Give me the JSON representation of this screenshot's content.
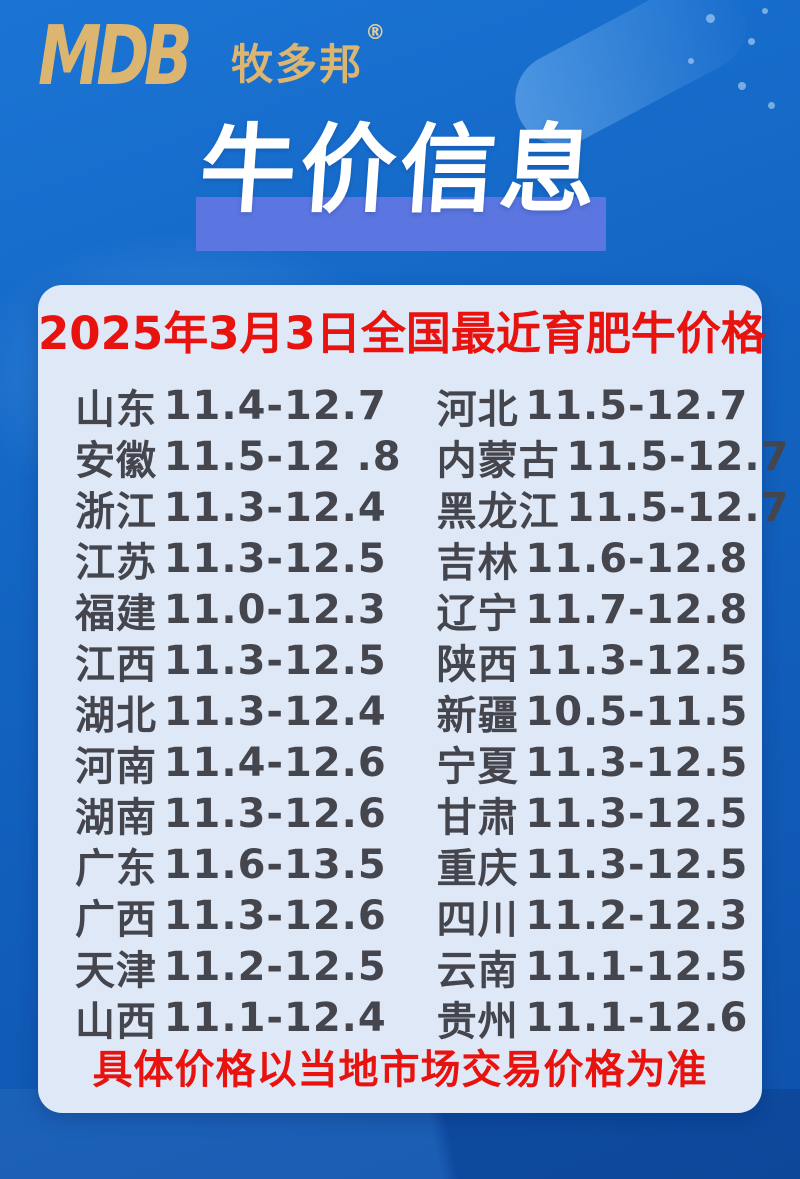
{
  "brand": {
    "logo": "MDB",
    "name": "牧多邦",
    "registered": "®"
  },
  "title": "牛价信息",
  "header": "2025年3月3日全国最近育肥牛价格",
  "footer": "具体价格以当地市场交易价格为准",
  "colors": {
    "accent_red": "#e8120e",
    "brand_gold": "#dcb671",
    "banner_blue": "#5b76e0",
    "card_bg": "#dee8f6",
    "bg_top": "#1b74d4",
    "bg_bottom": "#0e51ab",
    "row_text": "#45454d"
  },
  "table": {
    "left": [
      {
        "region": "山东",
        "price": "11.4-12.7"
      },
      {
        "region": "安徽",
        "price": "11.5-12 .8"
      },
      {
        "region": "浙江",
        "price": "11.3-12.4"
      },
      {
        "region": "江苏",
        "price": "11.3-12.5"
      },
      {
        "region": "福建",
        "price": "11.0-12.3"
      },
      {
        "region": "江西",
        "price": "11.3-12.5"
      },
      {
        "region": "湖北",
        "price": "11.3-12.4"
      },
      {
        "region": "河南",
        "price": "11.4-12.6"
      },
      {
        "region": "湖南",
        "price": "11.3-12.6"
      },
      {
        "region": "广东",
        "price": "11.6-13.5"
      },
      {
        "region": "广西",
        "price": "11.3-12.6"
      },
      {
        "region": "天津",
        "price": "11.2-12.5"
      },
      {
        "region": "山西",
        "price": "11.1-12.4"
      }
    ],
    "right": [
      {
        "region": "河北",
        "price": "11.5-12.7"
      },
      {
        "region": "内蒙古",
        "price": "11.5-12.7"
      },
      {
        "region": "黑龙江",
        "price": "11.5-12.7"
      },
      {
        "region": "吉林",
        "price": "11.6-12.8"
      },
      {
        "region": "辽宁",
        "price": "11.7-12.8"
      },
      {
        "region": "陕西",
        "price": "11.3-12.5"
      },
      {
        "region": "新疆",
        "price": "10.5-11.5"
      },
      {
        "region": "宁夏",
        "price": "11.3-12.5"
      },
      {
        "region": "甘肃",
        "price": "11.3-12.5"
      },
      {
        "region": "重庆",
        "price": "11.3-12.5"
      },
      {
        "region": "四川",
        "price": "11.2-12.3"
      },
      {
        "region": "云南",
        "price": "11.1-12.5"
      },
      {
        "region": "贵州",
        "price": "11.1-12.6"
      }
    ]
  }
}
